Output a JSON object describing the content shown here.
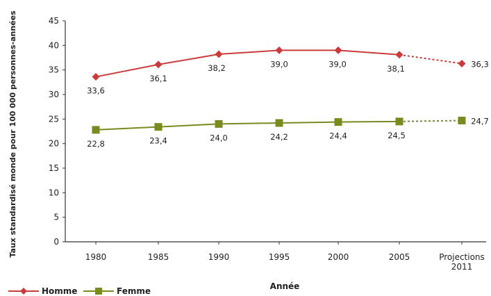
{
  "chart_data": {
    "type": "line",
    "title": "",
    "xlabel": "Année",
    "ylabel": "Taux standardisé monde pour 100 000 personnes-années",
    "categories": [
      "1980",
      "1985",
      "1990",
      "1995",
      "2000",
      "2005",
      "Projections\n2011"
    ],
    "ylim": [
      0,
      45
    ],
    "yticks": [
      0,
      5,
      10,
      15,
      20,
      25,
      30,
      35,
      40,
      45
    ],
    "grid": false,
    "legend_position": "bottom-left",
    "series": [
      {
        "name": "Homme",
        "color": "#cc3b3b",
        "marker": "diamond",
        "values": [
          33.6,
          36.1,
          38.2,
          39.0,
          39.0,
          38.1,
          36.3
        ],
        "labels": [
          "33,6",
          "36,1",
          "38,2",
          "39,0",
          "39,0",
          "38,1",
          "36,3"
        ],
        "projection_dashed": true
      },
      {
        "name": "Femme",
        "color": "#7a8a1f",
        "marker": "square",
        "values": [
          22.8,
          23.4,
          24.0,
          24.2,
          24.4,
          24.5,
          24.7
        ],
        "labels": [
          "22,8",
          "23,4",
          "24,0",
          "24,2",
          "24,4",
          "24,5",
          "24,7"
        ],
        "projection_dashed": true
      }
    ]
  }
}
